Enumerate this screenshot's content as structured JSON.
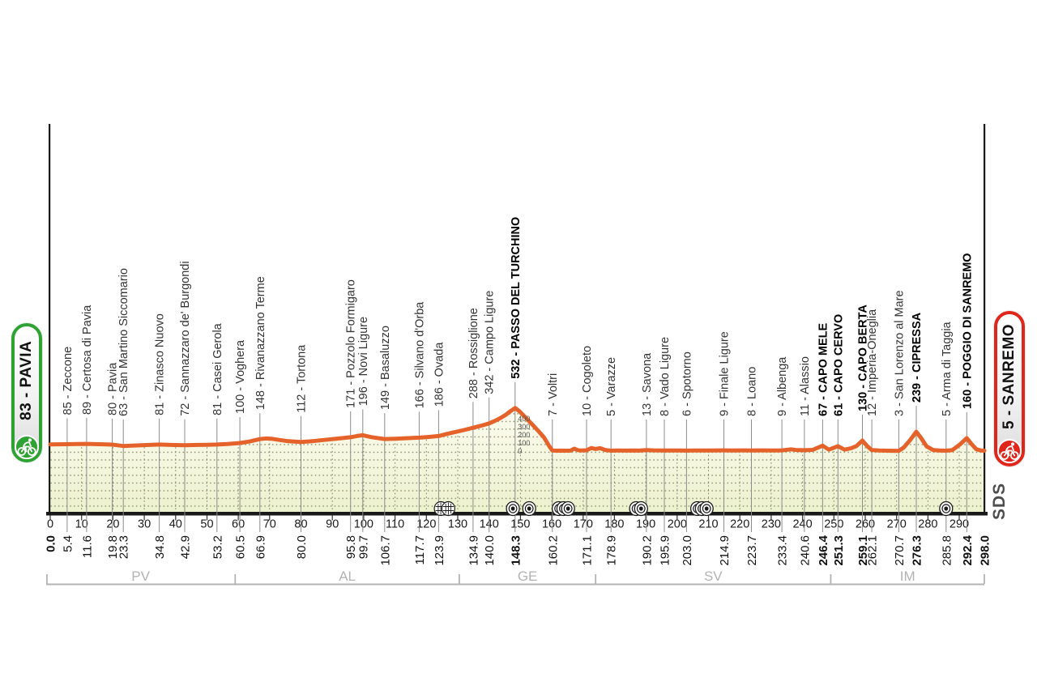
{
  "start_badge": {
    "label": "83 - PAVIA",
    "color": "#2ea233",
    "icon": "cyclist-icon"
  },
  "finish_badge": {
    "label": "5 - SANREMO",
    "color": "#e0251b",
    "icon": "cyclist-icon"
  },
  "logo": {
    "label": "SDS"
  },
  "chart_data": {
    "type": "area",
    "title": "",
    "xlabel": "",
    "ylabel": "",
    "xlim": [
      0,
      298
    ],
    "grid": "dotted",
    "colors": {
      "profile": "#e5632b",
      "area_top": "#fdfcf0",
      "area_bottom": "#ecf1cd",
      "grid_dot": "#8f9371",
      "axis": "#1a1a1a",
      "waypoint_line": "#8c8c8c",
      "tick_text": "#1a1a1a",
      "province": "#b3b3b3",
      "elev_scale": "#555555"
    },
    "x_ticks": [
      0,
      10,
      20,
      30,
      40,
      50,
      60,
      70,
      80,
      90,
      100,
      110,
      120,
      130,
      140,
      150,
      160,
      170,
      180,
      190,
      200,
      210,
      220,
      230,
      240,
      250,
      260,
      270,
      280,
      290
    ],
    "elevation_scale": {
      "km": 148.3,
      "values": [
        "400",
        "300",
        "200",
        "100",
        "0"
      ]
    },
    "waypoints": [
      {
        "km": 5.4,
        "elev": 85,
        "label": "85 - Zeccone",
        "bold": false
      },
      {
        "km": 11.6,
        "elev": 89,
        "label": "89 - Certosa di Pavia",
        "bold": false
      },
      {
        "km": 19.8,
        "elev": 80,
        "label": "80 - Pavia",
        "bold": false
      },
      {
        "km": 23.3,
        "elev": 63,
        "label": "63 - San Martino Siccomario",
        "bold": false
      },
      {
        "km": 34.8,
        "elev": 81,
        "label": "81 - Zinasco Nuovo",
        "bold": false
      },
      {
        "km": 42.9,
        "elev": 72,
        "label": "72 - Sannazzaro de' Burgondi",
        "bold": false
      },
      {
        "km": 53.2,
        "elev": 81,
        "label": "81 - Casei Gerola",
        "bold": false
      },
      {
        "km": 60.5,
        "elev": 100,
        "label": "100 - Voghera",
        "bold": false
      },
      {
        "km": 66.9,
        "elev": 148,
        "label": "148 - Rivanazzano Terme",
        "bold": false
      },
      {
        "km": 80.0,
        "elev": 112,
        "label": "112 - Tortona",
        "bold": false
      },
      {
        "km": 95.8,
        "elev": 171,
        "label": "171 - Pozzolo Formigaro",
        "bold": false
      },
      {
        "km": 99.7,
        "elev": 196,
        "label": "196 - Novi Ligure",
        "bold": false
      },
      {
        "km": 106.7,
        "elev": 149,
        "label": "149 - Basaluzzo",
        "bold": false
      },
      {
        "km": 117.7,
        "elev": 166,
        "label": "166 - Silvano d'Orba",
        "bold": false
      },
      {
        "km": 123.9,
        "elev": 186,
        "label": "186 - Ovada",
        "bold": false
      },
      {
        "km": 134.9,
        "elev": 288,
        "label": "288 - Rossiglione",
        "bold": false
      },
      {
        "km": 140.0,
        "elev": 342,
        "label": "342 - Campo Ligure",
        "bold": false
      },
      {
        "km": 148.3,
        "elev": 532,
        "label": "532 - PASSO DEL TURCHINO",
        "bold": true
      },
      {
        "km": 160.2,
        "elev": 7,
        "label": "7 - Voltri",
        "bold": false
      },
      {
        "km": 171.1,
        "elev": 10,
        "label": "10 - Cogoleto",
        "bold": false
      },
      {
        "km": 178.9,
        "elev": 5,
        "label": "5 - Varazze",
        "bold": false
      },
      {
        "km": 190.2,
        "elev": 13,
        "label": "13 - Savona",
        "bold": false
      },
      {
        "km": 195.9,
        "elev": 8,
        "label": "8 - Vado Ligure",
        "bold": false
      },
      {
        "km": 203.0,
        "elev": 6,
        "label": "6 - Spotorno",
        "bold": false
      },
      {
        "km": 214.9,
        "elev": 9,
        "label": "9 - Finale Ligure",
        "bold": false
      },
      {
        "km": 223.7,
        "elev": 8,
        "label": "8 - Loano",
        "bold": false
      },
      {
        "km": 233.4,
        "elev": 9,
        "label": "9 - Albenga",
        "bold": false
      },
      {
        "km": 240.6,
        "elev": 11,
        "label": "11 - Alassio",
        "bold": false
      },
      {
        "km": 246.4,
        "elev": 67,
        "label": "67 - CAPO MELE",
        "bold": true
      },
      {
        "km": 251.3,
        "elev": 61,
        "label": "61 - CAPO CERVO",
        "bold": true
      },
      {
        "km": 259.1,
        "elev": 130,
        "label": "130 - CAPO BERTA",
        "bold": true
      },
      {
        "km": 262.1,
        "elev": 12,
        "label": "12 - Imperia-Oneglia",
        "bold": false
      },
      {
        "km": 270.7,
        "elev": 3,
        "label": "3 - San Lorenzo al Mare",
        "bold": false
      },
      {
        "km": 276.3,
        "elev": 239,
        "label": "239 - CIPRESSA",
        "bold": true
      },
      {
        "km": 285.8,
        "elev": 5,
        "label": "5 - Arma di Taggia",
        "bold": false
      },
      {
        "km": 292.4,
        "elev": 160,
        "label": "160 - POGGIO DI SANREMO",
        "bold": true
      }
    ],
    "km_labels": [
      {
        "km": 0,
        "text": "0.0",
        "bold": true
      },
      {
        "km": 5.4,
        "text": "5.4",
        "bold": false
      },
      {
        "km": 11.6,
        "text": "11.6",
        "bold": false
      },
      {
        "km": 19.8,
        "text": "19.8",
        "bold": false
      },
      {
        "km": 23.3,
        "text": "23.3",
        "bold": false
      },
      {
        "km": 34.8,
        "text": "34.8",
        "bold": false
      },
      {
        "km": 42.9,
        "text": "42.9",
        "bold": false
      },
      {
        "km": 53.2,
        "text": "53.2",
        "bold": false
      },
      {
        "km": 60.5,
        "text": "60.5",
        "bold": false
      },
      {
        "km": 66.9,
        "text": "66.9",
        "bold": false
      },
      {
        "km": 80.0,
        "text": "80.0",
        "bold": false
      },
      {
        "km": 95.8,
        "text": "95.8",
        "bold": false
      },
      {
        "km": 99.7,
        "text": "99.7",
        "bold": false
      },
      {
        "km": 106.7,
        "text": "106.7",
        "bold": false
      },
      {
        "km": 117.7,
        "text": "117.7",
        "bold": false
      },
      {
        "km": 123.9,
        "text": "123.9",
        "bold": false
      },
      {
        "km": 134.9,
        "text": "134.9",
        "bold": false
      },
      {
        "km": 140.0,
        "text": "140.0",
        "bold": false
      },
      {
        "km": 148.3,
        "text": "148.3",
        "bold": true
      },
      {
        "km": 160.2,
        "text": "160.2",
        "bold": false
      },
      {
        "km": 171.1,
        "text": "171.1",
        "bold": false
      },
      {
        "km": 178.9,
        "text": "178.9",
        "bold": false
      },
      {
        "km": 190.2,
        "text": "190.2",
        "bold": false
      },
      {
        "km": 195.9,
        "text": "195.9",
        "bold": false
      },
      {
        "km": 203.0,
        "text": "203.0",
        "bold": false
      },
      {
        "km": 214.9,
        "text": "214.9",
        "bold": false
      },
      {
        "km": 223.7,
        "text": "223.7",
        "bold": false
      },
      {
        "km": 233.4,
        "text": "233.4",
        "bold": false
      },
      {
        "km": 240.6,
        "text": "240.6",
        "bold": false
      },
      {
        "km": 246.4,
        "text": "246.4",
        "bold": true
      },
      {
        "km": 251.3,
        "text": "251.3",
        "bold": true
      },
      {
        "km": 259.1,
        "text": "259.1",
        "bold": true
      },
      {
        "km": 262.1,
        "text": "262.1",
        "bold": false
      },
      {
        "km": 270.7,
        "text": "270.7",
        "bold": false
      },
      {
        "km": 276.3,
        "text": "276.3",
        "bold": true
      },
      {
        "km": 285.8,
        "text": "285.8",
        "bold": false
      },
      {
        "km": 292.4,
        "text": "292.4",
        "bold": true
      },
      {
        "km": 298.0,
        "text": "298.0",
        "bold": true
      }
    ],
    "provinces": [
      {
        "label": "PV",
        "from_km": 0,
        "to_km": 59
      },
      {
        "label": "AL",
        "from_km": 59,
        "to_km": 130.5
      },
      {
        "label": "GE",
        "from_km": 130.5,
        "to_km": 174
      },
      {
        "label": "SV",
        "from_km": 174,
        "to_km": 249
      },
      {
        "label": "IM",
        "from_km": 249,
        "to_km": 298
      }
    ],
    "tunnels": [
      {
        "km": 124.6,
        "type": "gallery"
      },
      {
        "km": 127.0,
        "type": "gallery"
      },
      {
        "km": 147.6,
        "type": "round"
      },
      {
        "km": 152.8,
        "type": "round"
      },
      {
        "km": 162.2,
        "type": "round"
      },
      {
        "km": 163.7,
        "type": "round"
      },
      {
        "km": 165.2,
        "type": "round"
      },
      {
        "km": 186.9,
        "type": "round"
      },
      {
        "km": 188.5,
        "type": "round"
      },
      {
        "km": 206.4,
        "type": "round"
      },
      {
        "km": 207.9,
        "type": "round"
      },
      {
        "km": 209.4,
        "type": "round"
      },
      {
        "km": 285.8,
        "type": "round"
      }
    ],
    "profile": [
      [
        0,
        83
      ],
      [
        2.5,
        84
      ],
      [
        5.4,
        85
      ],
      [
        8.5,
        87
      ],
      [
        11.6,
        89
      ],
      [
        15.5,
        85
      ],
      [
        19.8,
        80
      ],
      [
        21.5,
        72
      ],
      [
        23.3,
        63
      ],
      [
        26,
        68
      ],
      [
        30,
        74
      ],
      [
        34.8,
        81
      ],
      [
        38.5,
        76
      ],
      [
        42.9,
        72
      ],
      [
        47,
        76
      ],
      [
        50,
        78
      ],
      [
        53.2,
        81
      ],
      [
        56.5,
        88
      ],
      [
        60.5,
        100
      ],
      [
        63.5,
        118
      ],
      [
        66.9,
        148
      ],
      [
        68.8,
        156
      ],
      [
        70.5,
        153
      ],
      [
        73,
        138
      ],
      [
        76,
        122
      ],
      [
        80,
        112
      ],
      [
        83.5,
        122
      ],
      [
        87.5,
        138
      ],
      [
        91.5,
        154
      ],
      [
        95.8,
        171
      ],
      [
        97.8,
        186
      ],
      [
        99.7,
        196
      ],
      [
        102.5,
        172
      ],
      [
        106.7,
        149
      ],
      [
        110,
        153
      ],
      [
        113.5,
        159
      ],
      [
        117.7,
        166
      ],
      [
        120.5,
        174
      ],
      [
        123.9,
        186
      ],
      [
        126.5,
        212
      ],
      [
        129.5,
        238
      ],
      [
        132,
        260
      ],
      [
        134.9,
        288
      ],
      [
        137.5,
        314
      ],
      [
        140,
        342
      ],
      [
        141.8,
        372
      ],
      [
        143.5,
        405
      ],
      [
        145.3,
        448
      ],
      [
        146.8,
        492
      ],
      [
        148.3,
        532
      ],
      [
        149.8,
        488
      ],
      [
        151.5,
        420
      ],
      [
        153.5,
        340
      ],
      [
        155.5,
        258
      ],
      [
        157.5,
        170
      ],
      [
        159.2,
        60
      ],
      [
        160.2,
        7
      ],
      [
        161.5,
        5
      ],
      [
        163,
        6
      ],
      [
        164.5,
        5
      ],
      [
        166,
        6
      ],
      [
        167.2,
        30
      ],
      [
        168.3,
        12
      ],
      [
        169.3,
        7
      ],
      [
        171.1,
        10
      ],
      [
        172.6,
        38
      ],
      [
        174,
        26
      ],
      [
        175.5,
        36
      ],
      [
        177,
        14
      ],
      [
        178.9,
        5
      ],
      [
        181,
        7
      ],
      [
        183.5,
        6
      ],
      [
        186,
        8
      ],
      [
        188,
        6
      ],
      [
        190.2,
        13
      ],
      [
        192.5,
        9
      ],
      [
        195.9,
        8
      ],
      [
        199,
        7
      ],
      [
        201,
        8
      ],
      [
        203,
        6
      ],
      [
        205.5,
        7
      ],
      [
        208,
        8
      ],
      [
        211,
        7
      ],
      [
        214.9,
        9
      ],
      [
        218,
        8
      ],
      [
        221,
        9
      ],
      [
        223.7,
        8
      ],
      [
        227,
        9
      ],
      [
        230,
        8
      ],
      [
        233.4,
        9
      ],
      [
        236.3,
        22
      ],
      [
        238.3,
        12
      ],
      [
        240.6,
        11
      ],
      [
        243.2,
        15
      ],
      [
        246.4,
        67
      ],
      [
        248.4,
        18
      ],
      [
        251.3,
        61
      ],
      [
        253.4,
        18
      ],
      [
        255.5,
        36
      ],
      [
        257.2,
        62
      ],
      [
        259.1,
        130
      ],
      [
        260.6,
        62
      ],
      [
        262.1,
        12
      ],
      [
        264.5,
        7
      ],
      [
        267,
        5
      ],
      [
        269,
        4
      ],
      [
        270.7,
        3
      ],
      [
        272.3,
        45
      ],
      [
        274.4,
        140
      ],
      [
        276.3,
        239
      ],
      [
        277.9,
        158
      ],
      [
        279.6,
        58
      ],
      [
        281.6,
        14
      ],
      [
        283.6,
        7
      ],
      [
        285.8,
        5
      ],
      [
        287.8,
        12
      ],
      [
        290.3,
        85
      ],
      [
        292.4,
        160
      ],
      [
        293.9,
        88
      ],
      [
        295.4,
        24
      ],
      [
        296.8,
        8
      ],
      [
        298,
        5
      ]
    ]
  }
}
